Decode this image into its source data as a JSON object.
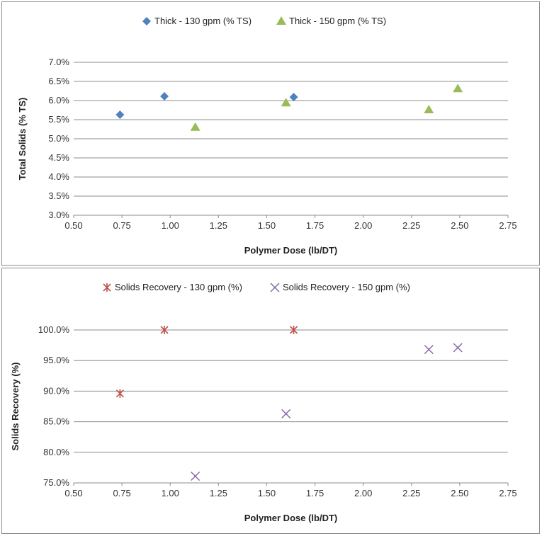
{
  "chart_data": [
    {
      "type": "scatter",
      "title": "",
      "xlabel": "Polymer Dose (lb/DT)",
      "ylabel": "Total Solids (% TS)",
      "xlim": [
        0.5,
        2.75
      ],
      "ylim": [
        0.03,
        0.07
      ],
      "x_ticks": [
        "0.50",
        "0.75",
        "1.00",
        "1.25",
        "1.50",
        "1.75",
        "2.00",
        "2.25",
        "2.50",
        "2.75"
      ],
      "y_ticks": [
        "3.0%",
        "3.5%",
        "4.0%",
        "4.5%",
        "5.0%",
        "5.5%",
        "6.0%",
        "6.5%",
        "7.0%"
      ],
      "grid": "horizontal",
      "legend": "top",
      "series": [
        {
          "name": "Thick - 130 gpm (% TS)",
          "marker": "diamond",
          "color": "#4f81bd",
          "points": [
            [
              0.74,
              0.0563
            ],
            [
              0.97,
              0.0611
            ],
            [
              1.64,
              0.0609
            ]
          ]
        },
        {
          "name": "Thick - 150 gpm (% TS)",
          "marker": "triangle",
          "color": "#9bbb59",
          "points": [
            [
              1.13,
              0.053
            ],
            [
              1.6,
              0.0594
            ],
            [
              2.34,
              0.0576
            ],
            [
              2.49,
              0.0631
            ]
          ]
        }
      ]
    },
    {
      "type": "scatter",
      "title": "",
      "xlabel": "Polymer Dose (lb/DT)",
      "ylabel": "Solids Recovery (%)",
      "xlim": [
        0.5,
        2.75
      ],
      "ylim": [
        0.75,
        1.0
      ],
      "x_ticks": [
        "0.50",
        "0.75",
        "1.00",
        "1.25",
        "1.50",
        "1.75",
        "2.00",
        "2.25",
        "2.50",
        "2.75"
      ],
      "y_ticks": [
        "75.0%",
        "80.0%",
        "85.0%",
        "90.0%",
        "95.0%",
        "100.0%"
      ],
      "grid": "horizontal",
      "legend": "top",
      "series": [
        {
          "name": "Solids Recovery - 130 gpm (%)",
          "marker": "star",
          "color": "#c0504d",
          "points": [
            [
              0.74,
              0.896
            ],
            [
              0.97,
              1.0
            ],
            [
              1.64,
              1.0
            ]
          ]
        },
        {
          "name": "Solids Recovery - 150 gpm (%)",
          "marker": "x",
          "color": "#8064a2",
          "points": [
            [
              1.13,
              0.761
            ],
            [
              1.6,
              0.863
            ],
            [
              2.34,
              0.968
            ],
            [
              2.49,
              0.971
            ]
          ]
        }
      ]
    }
  ]
}
